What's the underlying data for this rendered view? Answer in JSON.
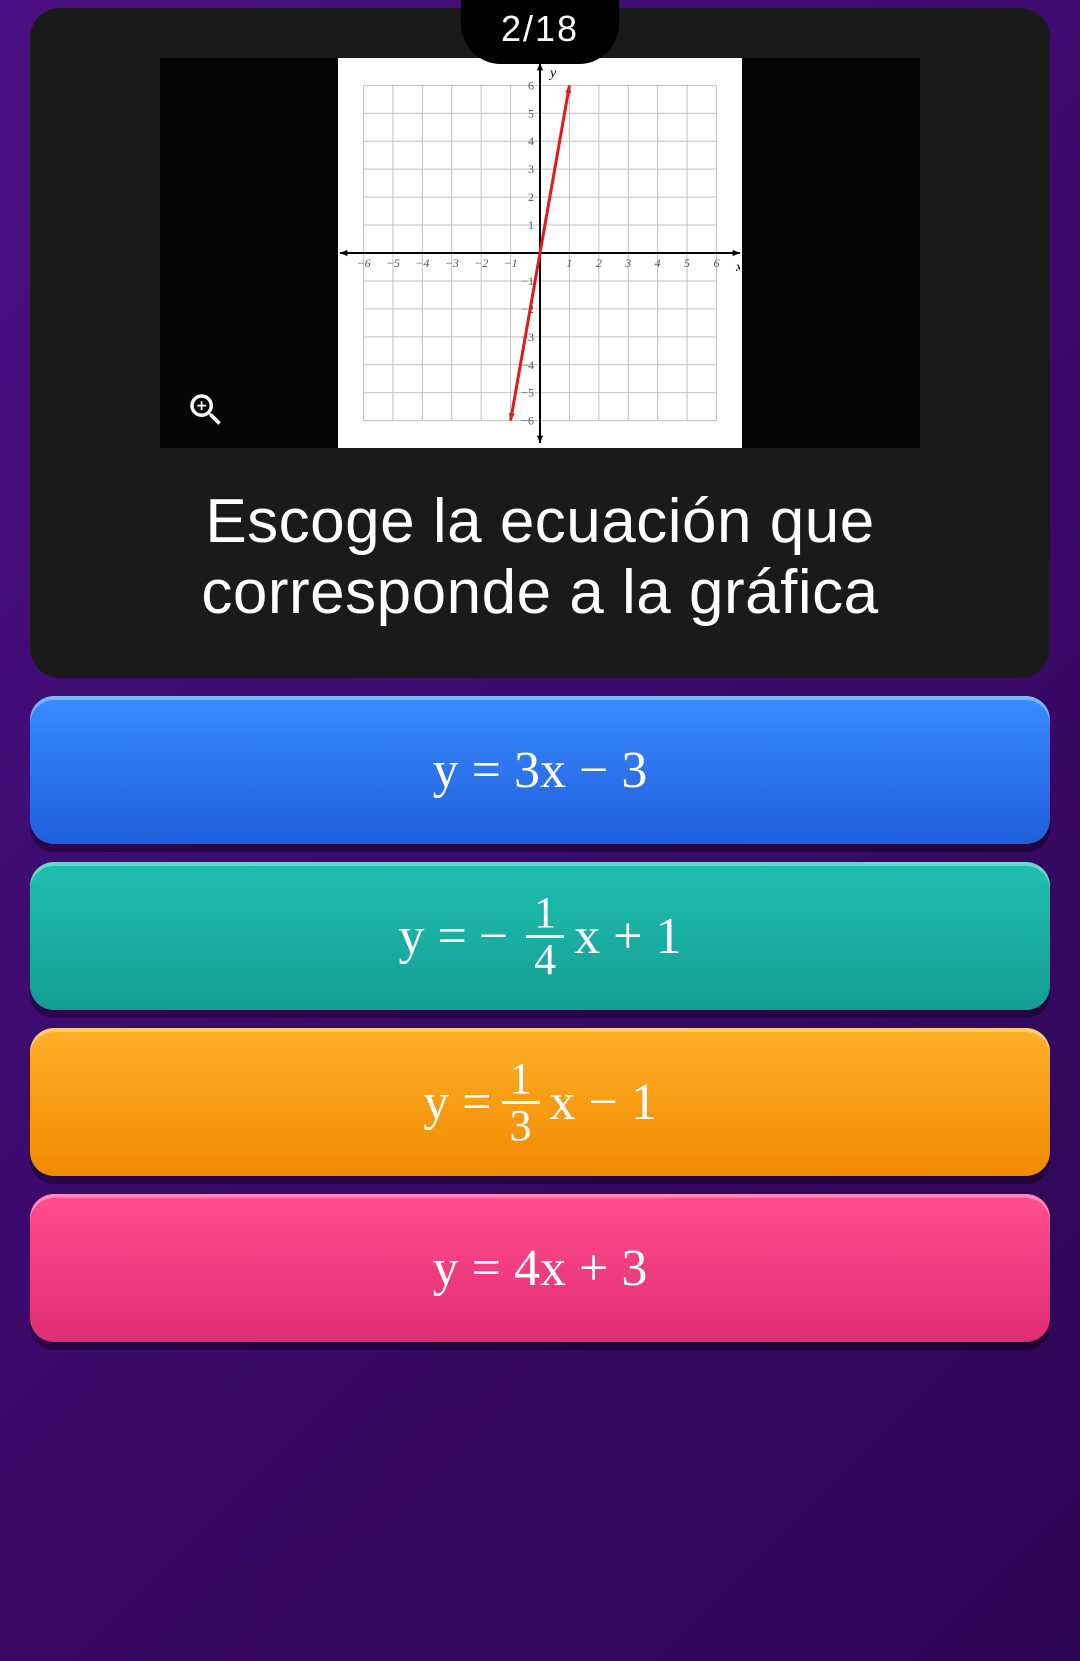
{
  "progress": {
    "label": "2/18"
  },
  "question": {
    "text": "Escoge la ecuación que corresponde a la gráfica",
    "zoom_icon": "zoom-in-icon"
  },
  "chart": {
    "type": "line",
    "xlim": [
      -6.8,
      6.8
    ],
    "ylim": [
      -6.8,
      6.8
    ],
    "xtick_step": 1,
    "ytick_step": 1,
    "x_labels": [
      -6,
      -5,
      -4,
      -3,
      -2,
      -1,
      1,
      2,
      3,
      4,
      5,
      6
    ],
    "y_labels": [
      -6,
      -5,
      -4,
      -3,
      -2,
      -1,
      1,
      2,
      3,
      4,
      5,
      6
    ],
    "axis_label_x": "x",
    "axis_label_y": "y",
    "grid_color": "#bfbfbf",
    "axis_color": "#000000",
    "background_color": "#ffffff",
    "line_color": "#e11b1b",
    "line_width": 3,
    "line_points": [
      [
        -1.0,
        -6.0
      ],
      [
        1.0,
        6.0
      ]
    ],
    "label_fontsize": 12,
    "arrowheads": true
  },
  "answers": [
    {
      "id": "a",
      "color_class": "blue",
      "bg_colors": [
        "#3a8cff",
        "#1f5edb"
      ],
      "latex": "y = 3x − 3",
      "type": "plain"
    },
    {
      "id": "b",
      "color_class": "teal",
      "bg_colors": [
        "#1fc0b0",
        "#149e93"
      ],
      "latex": "y = −(1/4)x + 1",
      "type": "frac",
      "sign": "−",
      "num": "1",
      "den": "4",
      "tail": "x + 1"
    },
    {
      "id": "c",
      "color_class": "orange",
      "bg_colors": [
        "#ffb028",
        "#f08a00"
      ],
      "latex": "y = (1/3)x − 1",
      "type": "frac",
      "sign": "",
      "num": "1",
      "den": "3",
      "tail": "x − 1"
    },
    {
      "id": "d",
      "color_class": "pink",
      "bg_colors": [
        "#ff4d8d",
        "#e12d74"
      ],
      "latex": "y = 4x + 3",
      "type": "plain"
    }
  ],
  "colors": {
    "page_bg": "#3b0a6b",
    "card_bg": "#1a1a1a",
    "text": "#ffffff"
  }
}
